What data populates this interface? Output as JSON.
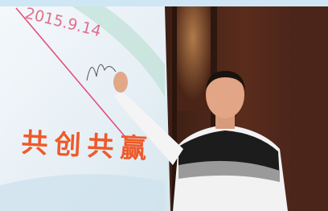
{
  "banner": {
    "date": "2015.9.14",
    "slogan": "共创共赢"
  }
}
